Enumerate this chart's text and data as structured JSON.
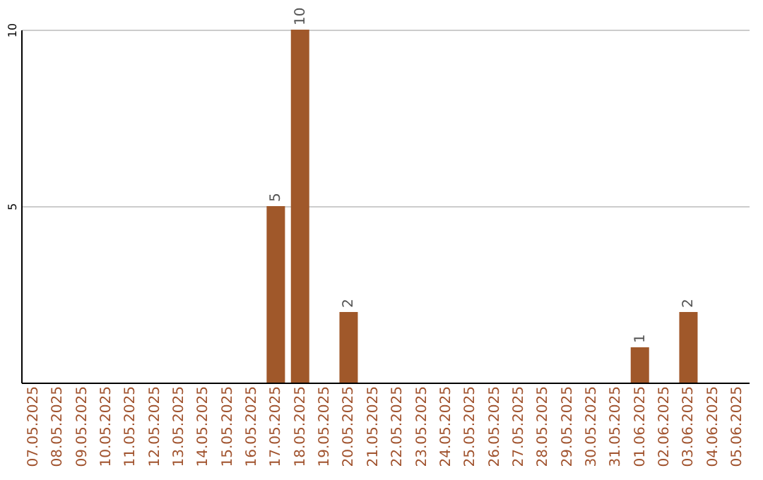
{
  "chart_data": {
    "type": "bar",
    "categories": [
      "07.05.2025",
      "08.05.2025",
      "09.05.2025",
      "10.05.2025",
      "11.05.2025",
      "12.05.2025",
      "13.05.2025",
      "14.05.2025",
      "15.05.2025",
      "16.05.2025",
      "17.05.2025",
      "18.05.2025",
      "19.05.2025",
      "20.05.2025",
      "21.05.2025",
      "22.05.2025",
      "23.05.2025",
      "24.05.2025",
      "25.05.2025",
      "26.05.2025",
      "27.05.2025",
      "28.05.2025",
      "29.05.2025",
      "30.05.2025",
      "31.05.2025",
      "01.06.2025",
      "02.06.2025",
      "03.06.2025",
      "04.06.2025",
      "05.06.2025"
    ],
    "values": [
      0,
      0,
      0,
      0,
      0,
      0,
      0,
      0,
      0,
      0,
      5,
      10,
      0,
      2,
      0,
      0,
      0,
      0,
      0,
      0,
      0,
      0,
      0,
      0,
      0,
      1,
      0,
      2,
      0,
      0
    ],
    "value_labels": [
      null,
      null,
      null,
      null,
      null,
      null,
      null,
      null,
      null,
      null,
      "5",
      "10",
      null,
      "2",
      null,
      null,
      null,
      null,
      null,
      null,
      null,
      null,
      null,
      null,
      null,
      "1",
      null,
      "2",
      null,
      null
    ],
    "color": "#a0582a",
    "ylim": [
      0,
      10
    ],
    "yticks": [
      {
        "value": 0,
        "label": null
      },
      5,
      10
    ],
    "grid": "y"
  }
}
